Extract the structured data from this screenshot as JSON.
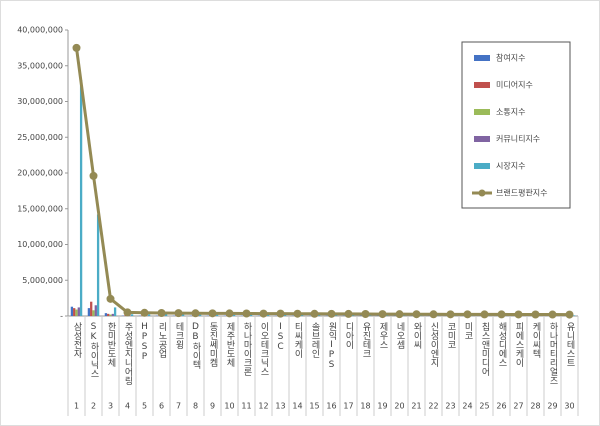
{
  "chart_data": {
    "type": "bar",
    "categories": [
      "삼성전자",
      "SK하이닉스",
      "한미반도체",
      "주성엔지니어링",
      "HPSP",
      "리노공업",
      "테크윙",
      "DB하이텍",
      "동진쎄미켐",
      "제주반도체",
      "하나마이크론",
      "이오테크닉스",
      "ISC",
      "티씨케이",
      "솔브레인",
      "원익IPS",
      "디아이",
      "유진테크",
      "제우스",
      "네오셈",
      "와이씨",
      "신성이엔지",
      "코미코",
      "미코",
      "칩스앤미디어",
      "해성디에스",
      "피에스케이",
      "케이씨텍",
      "하나머티리얼즈",
      "유니테스트"
    ],
    "ranks": [
      1,
      2,
      3,
      4,
      5,
      6,
      7,
      8,
      9,
      10,
      11,
      12,
      13,
      14,
      15,
      16,
      17,
      18,
      19,
      20,
      21,
      22,
      23,
      24,
      25,
      26,
      27,
      28,
      29,
      30
    ],
    "ylim": [
      0,
      40000000
    ],
    "yticks": [
      {
        "value": 0,
        "label": "-"
      },
      {
        "value": 5000000,
        "label": "5,000,000"
      },
      {
        "value": 10000000,
        "label": "10,000,000"
      },
      {
        "value": 15000000,
        "label": "15,000,000"
      },
      {
        "value": 20000000,
        "label": "20,000,000"
      },
      {
        "value": 25000000,
        "label": "25,000,000"
      },
      {
        "value": 30000000,
        "label": "30,000,000"
      },
      {
        "value": 35000000,
        "label": "35,000,000"
      },
      {
        "value": 40000000,
        "label": "40,000,000"
      }
    ],
    "series": [
      {
        "name": "참여지수",
        "color": "#4472c4",
        "values": [
          1300000,
          1100000,
          400000,
          60000,
          50000,
          60000,
          50000,
          50000,
          50000,
          50000,
          50000,
          50000,
          40000,
          40000,
          40000,
          40000,
          40000,
          40000,
          40000,
          40000,
          30000,
          30000,
          30000,
          30000,
          30000,
          30000,
          30000,
          30000,
          30000,
          30000
        ]
      },
      {
        "name": "미디어지수",
        "color": "#c0504d",
        "values": [
          1100000,
          2000000,
          300000,
          80000,
          70000,
          60000,
          60000,
          60000,
          50000,
          50000,
          50000,
          50000,
          50000,
          50000,
          50000,
          40000,
          40000,
          40000,
          40000,
          40000,
          40000,
          30000,
          30000,
          30000,
          30000,
          30000,
          30000,
          30000,
          30000,
          30000
        ]
      },
      {
        "name": "소통지수",
        "color": "#9bbb59",
        "values": [
          900000,
          800000,
          200000,
          50000,
          40000,
          40000,
          40000,
          40000,
          40000,
          40000,
          30000,
          30000,
          30000,
          30000,
          30000,
          30000,
          30000,
          30000,
          30000,
          30000,
          20000,
          20000,
          20000,
          20000,
          20000,
          20000,
          20000,
          20000,
          20000,
          20000
        ]
      },
      {
        "name": "커뮤니티지수",
        "color": "#8064a2",
        "values": [
          1200000,
          1500000,
          300000,
          70000,
          60000,
          60000,
          50000,
          50000,
          50000,
          50000,
          50000,
          40000,
          40000,
          40000,
          40000,
          40000,
          40000,
          30000,
          30000,
          30000,
          30000,
          30000,
          30000,
          30000,
          30000,
          30000,
          30000,
          30000,
          30000,
          30000
        ]
      },
      {
        "name": "시장지수",
        "color": "#4bacc6",
        "values": [
          33000000,
          14200000,
          1200000,
          240000,
          230000,
          220000,
          210000,
          200000,
          190000,
          180000,
          170000,
          170000,
          160000,
          160000,
          150000,
          150000,
          140000,
          140000,
          130000,
          130000,
          120000,
          120000,
          110000,
          110000,
          100000,
          100000,
          100000,
          90000,
          90000,
          90000
        ]
      },
      {
        "name": "브랜드평판지수",
        "color": "#948a54",
        "type": "line",
        "values": [
          37500000,
          19600000,
          2400000,
          500000,
          450000,
          420000,
          400000,
          380000,
          370000,
          360000,
          350000,
          340000,
          330000,
          320000,
          310000,
          300000,
          290000,
          280000,
          270000,
          260000,
          250000,
          240000,
          235000,
          230000,
          225000,
          220000,
          215000,
          210000,
          205000,
          200000
        ]
      }
    ]
  }
}
